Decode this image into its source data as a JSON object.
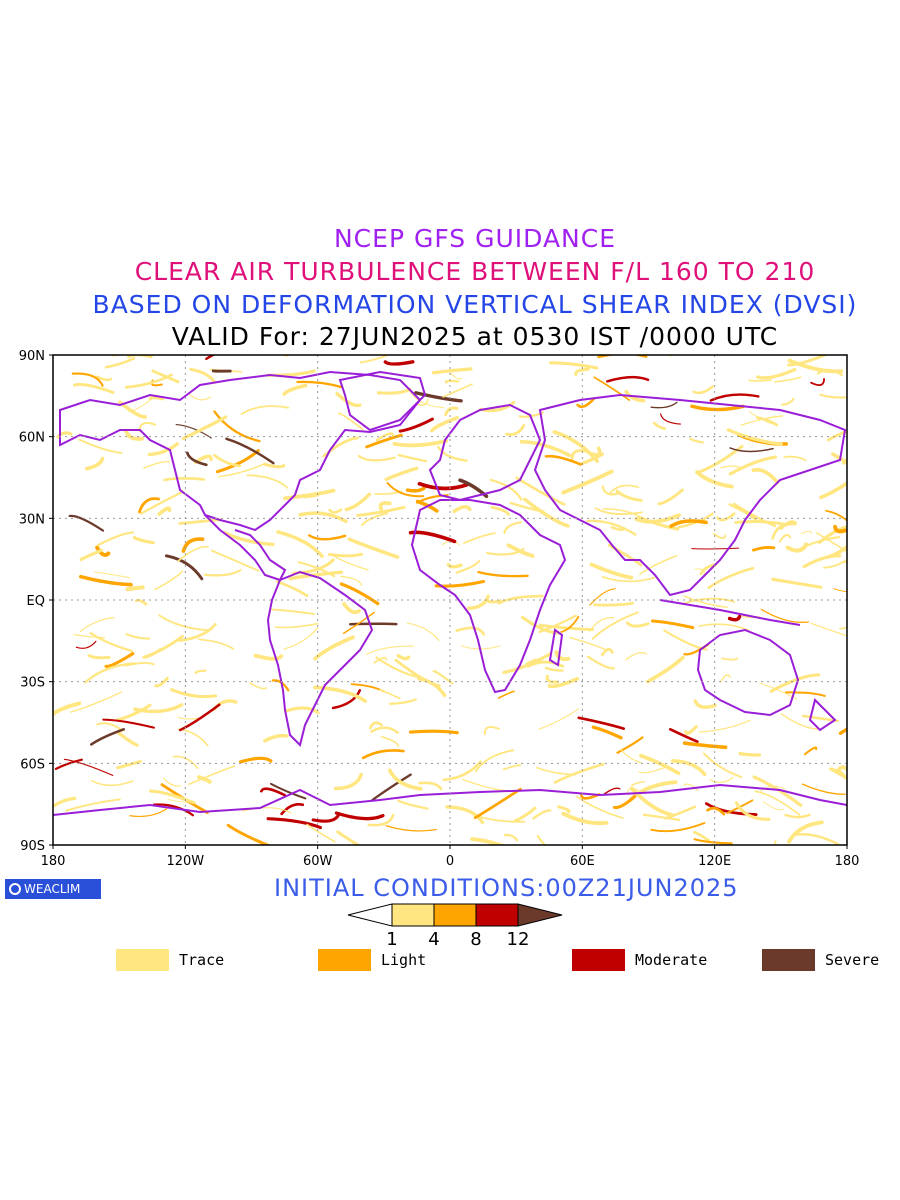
{
  "titles": {
    "line1": "NCEP GFS GUIDANCE",
    "line2": "CLEAR AIR TURBULENCE BETWEEN F/L 160 TO 210",
    "line3": "BASED ON DEFORMATION VERTICAL SHEAR INDEX (DVSI)",
    "line4": "VALID For: 27JUN2025 at 0530 IST /0000 UTC"
  },
  "axes": {
    "lat_labels": [
      "90N",
      "60N",
      "30N",
      "EQ",
      "30S",
      "60S",
      "90S"
    ],
    "lon_labels": [
      "180",
      "120W",
      "60W",
      "0",
      "60E",
      "120E",
      "180"
    ]
  },
  "logo": "WEACLIM",
  "initial_conditions": "INITIAL CONDITIONS:00Z21JUN2025",
  "colorbar": {
    "ticks": [
      "1",
      "4",
      "8",
      "12"
    ],
    "colors": [
      "#ffe680",
      "#ffa500",
      "#c00000",
      "#6b3a2a"
    ]
  },
  "legend": [
    {
      "label": "Trace",
      "color": "#ffe680"
    },
    {
      "label": "Light",
      "color": "#ffa500"
    },
    {
      "label": "Moderate",
      "color": "#c00000"
    },
    {
      "label": "Severe",
      "color": "#6b3a2a"
    }
  ],
  "colors": {
    "coastline": "#9a1ed8",
    "grid": "#999999"
  }
}
